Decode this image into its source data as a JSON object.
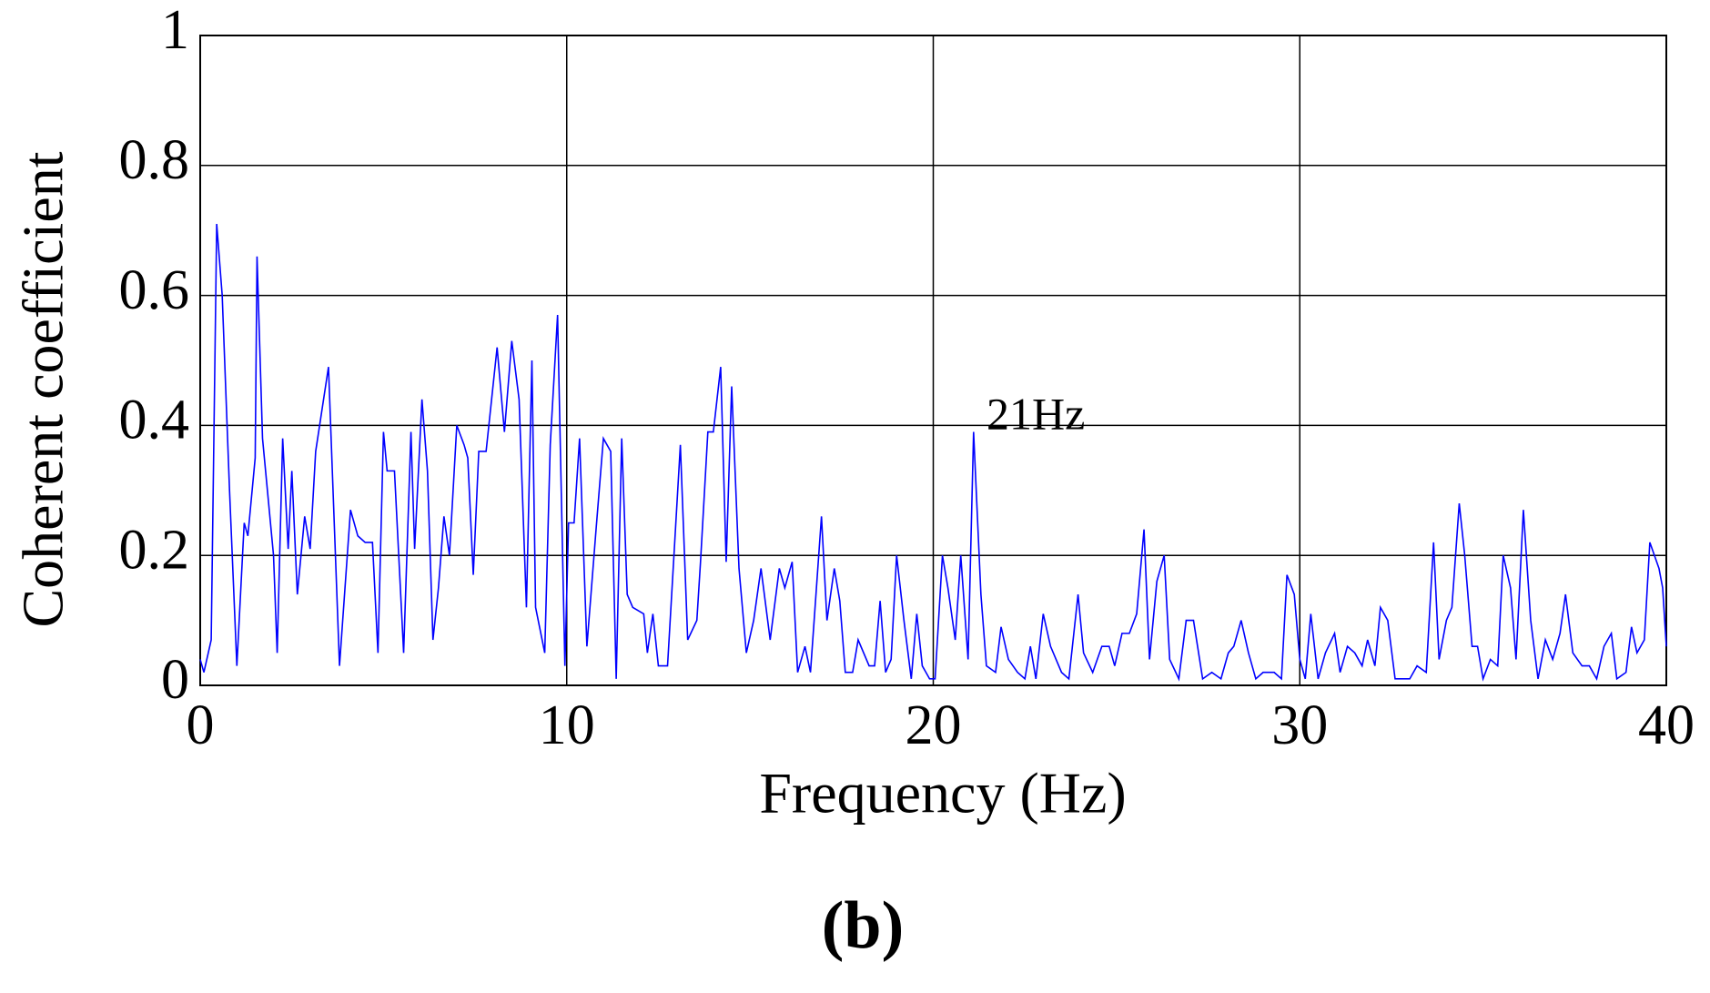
{
  "chart_data": {
    "type": "line",
    "xlabel": "Frequency (Hz)",
    "ylabel": "Coherent coefficient",
    "annotation": "21Hz",
    "caption": "(b)",
    "xlim": [
      0,
      40
    ],
    "xticks": [
      0,
      10,
      20,
      30,
      40
    ],
    "ylim": [
      0,
      1
    ],
    "yticks": [
      0,
      0.2,
      0.4,
      0.6,
      0.8,
      1
    ],
    "grid": true,
    "series": [
      {
        "color": "#0000ff",
        "x": [
          0,
          0.1,
          0.3,
          0.45,
          0.6,
          0.8,
          1.0,
          1.2,
          1.3,
          1.5,
          1.55,
          1.7,
          2.0,
          2.1,
          2.25,
          2.4,
          2.5,
          2.65,
          2.85,
          3.0,
          3.15,
          3.5,
          3.8,
          4.1,
          4.3,
          4.5,
          4.7,
          4.85,
          5.0,
          5.1,
          5.3,
          5.55,
          5.75,
          5.85,
          6.05,
          6.2,
          6.35,
          6.5,
          6.65,
          6.8,
          7.0,
          7.2,
          7.3,
          7.45,
          7.6,
          7.8,
          8.1,
          8.3,
          8.5,
          8.7,
          8.9,
          9.05,
          9.15,
          9.4,
          9.55,
          9.75,
          9.95,
          10.05,
          10.2,
          10.35,
          10.55,
          10.8,
          11.0,
          11.2,
          11.35,
          11.5,
          11.65,
          11.8,
          12.1,
          12.2,
          12.35,
          12.5,
          12.75,
          13.1,
          13.3,
          13.55,
          13.65,
          13.85,
          14.0,
          14.2,
          14.35,
          14.5,
          14.7,
          14.9,
          15.1,
          15.3,
          15.55,
          15.8,
          15.95,
          16.15,
          16.3,
          16.5,
          16.65,
          16.95,
          17.1,
          17.3,
          17.45,
          17.6,
          17.8,
          17.95,
          18.25,
          18.4,
          18.55,
          18.7,
          18.85,
          19.0,
          19.2,
          19.4,
          19.55,
          19.7,
          19.9,
          20.05,
          20.25,
          20.4,
          20.6,
          20.75,
          20.95,
          21.1,
          21.3,
          21.45,
          21.7,
          21.85,
          22.05,
          22.3,
          22.5,
          22.65,
          22.8,
          23.0,
          23.2,
          23.5,
          23.7,
          23.95,
          24.1,
          24.35,
          24.6,
          24.8,
          24.95,
          25.15,
          25.35,
          25.55,
          25.75,
          25.9,
          26.1,
          26.3,
          26.45,
          26.7,
          26.9,
          27.1,
          27.35,
          27.6,
          27.85,
          28.05,
          28.2,
          28.4,
          28.6,
          28.8,
          29.0,
          29.3,
          29.5,
          29.65,
          29.85,
          30.0,
          30.15,
          30.3,
          30.5,
          30.7,
          30.95,
          31.1,
          31.3,
          31.5,
          31.7,
          31.85,
          32.05,
          32.2,
          32.4,
          32.6,
          32.8,
          33.0,
          33.2,
          33.45,
          33.65,
          33.8,
          34.0,
          34.15,
          34.35,
          34.5,
          34.7,
          34.85,
          35.0,
          35.2,
          35.4,
          35.55,
          35.75,
          35.9,
          36.1,
          36.3,
          36.5,
          36.7,
          36.9,
          37.1,
          37.25,
          37.45,
          37.7,
          37.9,
          38.1,
          38.3,
          38.5,
          38.65,
          38.9,
          39.05,
          39.2,
          39.4,
          39.55,
          39.8,
          39.9,
          40.0
        ],
        "values": [
          0.04,
          0.02,
          0.07,
          0.71,
          0.6,
          0.3,
          0.03,
          0.25,
          0.23,
          0.35,
          0.66,
          0.38,
          0.2,
          0.05,
          0.38,
          0.21,
          0.33,
          0.14,
          0.26,
          0.21,
          0.36,
          0.49,
          0.03,
          0.27,
          0.23,
          0.22,
          0.22,
          0.05,
          0.39,
          0.33,
          0.33,
          0.05,
          0.39,
          0.21,
          0.44,
          0.33,
          0.07,
          0.15,
          0.26,
          0.2,
          0.4,
          0.37,
          0.35,
          0.17,
          0.36,
          0.36,
          0.52,
          0.39,
          0.53,
          0.44,
          0.12,
          0.5,
          0.12,
          0.05,
          0.37,
          0.57,
          0.03,
          0.25,
          0.25,
          0.38,
          0.06,
          0.24,
          0.38,
          0.36,
          0.01,
          0.38,
          0.14,
          0.12,
          0.11,
          0.05,
          0.11,
          0.03,
          0.03,
          0.37,
          0.07,
          0.1,
          0.19,
          0.39,
          0.39,
          0.49,
          0.19,
          0.46,
          0.18,
          0.05,
          0.1,
          0.18,
          0.07,
          0.18,
          0.15,
          0.19,
          0.02,
          0.06,
          0.02,
          0.26,
          0.1,
          0.18,
          0.13,
          0.02,
          0.02,
          0.07,
          0.03,
          0.03,
          0.13,
          0.02,
          0.04,
          0.2,
          0.1,
          0.01,
          0.11,
          0.03,
          0.01,
          0.01,
          0.2,
          0.15,
          0.07,
          0.2,
          0.04,
          0.39,
          0.14,
          0.03,
          0.02,
          0.09,
          0.04,
          0.02,
          0.01,
          0.06,
          0.01,
          0.11,
          0.06,
          0.02,
          0.01,
          0.14,
          0.05,
          0.02,
          0.06,
          0.06,
          0.03,
          0.08,
          0.08,
          0.11,
          0.24,
          0.04,
          0.16,
          0.2,
          0.04,
          0.01,
          0.1,
          0.1,
          0.01,
          0.02,
          0.01,
          0.05,
          0.06,
          0.1,
          0.05,
          0.01,
          0.02,
          0.02,
          0.01,
          0.17,
          0.14,
          0.04,
          0.01,
          0.11,
          0.01,
          0.05,
          0.08,
          0.02,
          0.06,
          0.05,
          0.03,
          0.07,
          0.03,
          0.12,
          0.1,
          0.01,
          0.01,
          0.01,
          0.03,
          0.02,
          0.22,
          0.04,
          0.1,
          0.12,
          0.28,
          0.2,
          0.06,
          0.06,
          0.01,
          0.04,
          0.03,
          0.2,
          0.15,
          0.04,
          0.27,
          0.1,
          0.01,
          0.07,
          0.04,
          0.08,
          0.14,
          0.05,
          0.03,
          0.03,
          0.01,
          0.06,
          0.08,
          0.01,
          0.02,
          0.09,
          0.05,
          0.07,
          0.22,
          0.18,
          0.15,
          0.06
        ]
      }
    ]
  }
}
